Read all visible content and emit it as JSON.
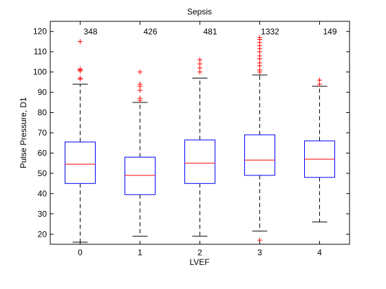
{
  "chart_data": {
    "type": "boxplot",
    "title": "Sepsis",
    "xlabel": "LVEF",
    "ylabel": "Pulse Pressure, D1",
    "xlim": [
      -0.5,
      4.5
    ],
    "ylim": [
      15,
      125
    ],
    "yticks": [
      20,
      30,
      40,
      50,
      60,
      70,
      80,
      90,
      100,
      110,
      120
    ],
    "categories": [
      "0",
      "1",
      "2",
      "3",
      "4"
    ],
    "counts": [
      "348",
      "426",
      "481",
      "1332",
      "149"
    ],
    "grid": false,
    "colors": {
      "box": "#0000ff",
      "median": "#ff0000",
      "whisker": "#000000",
      "outlier": "#ff0000",
      "axes": "#000000"
    },
    "boxes": [
      {
        "category": "0",
        "q1": 45,
        "median": 54.5,
        "q3": 65.5,
        "whisker_low": 16,
        "whisker_high": 94,
        "outliers": [
          96.5,
          97,
          100.5,
          101,
          101.5,
          115
        ]
      },
      {
        "category": "1",
        "q1": 39.5,
        "median": 49,
        "q3": 58,
        "whisker_low": 19,
        "whisker_high": 85,
        "outliers": [
          86,
          87,
          91,
          93,
          94,
          100
        ]
      },
      {
        "category": "2",
        "q1": 45,
        "median": 55,
        "q3": 66.5,
        "whisker_low": 19,
        "whisker_high": 97,
        "outliers": [
          100,
          102,
          104,
          106
        ]
      },
      {
        "category": "3",
        "q1": 49,
        "median": 56.5,
        "q3": 69,
        "whisker_low": 21.5,
        "whisker_high": 98.5,
        "outliers": [
          17,
          100,
          101,
          103,
          104.5,
          106.5,
          108,
          110,
          111.5,
          113,
          114.5,
          116,
          117
        ]
      },
      {
        "category": "4",
        "q1": 48,
        "median": 57,
        "q3": 66,
        "whisker_low": 26,
        "whisker_high": 93,
        "outliers": [
          94,
          96
        ]
      }
    ]
  }
}
